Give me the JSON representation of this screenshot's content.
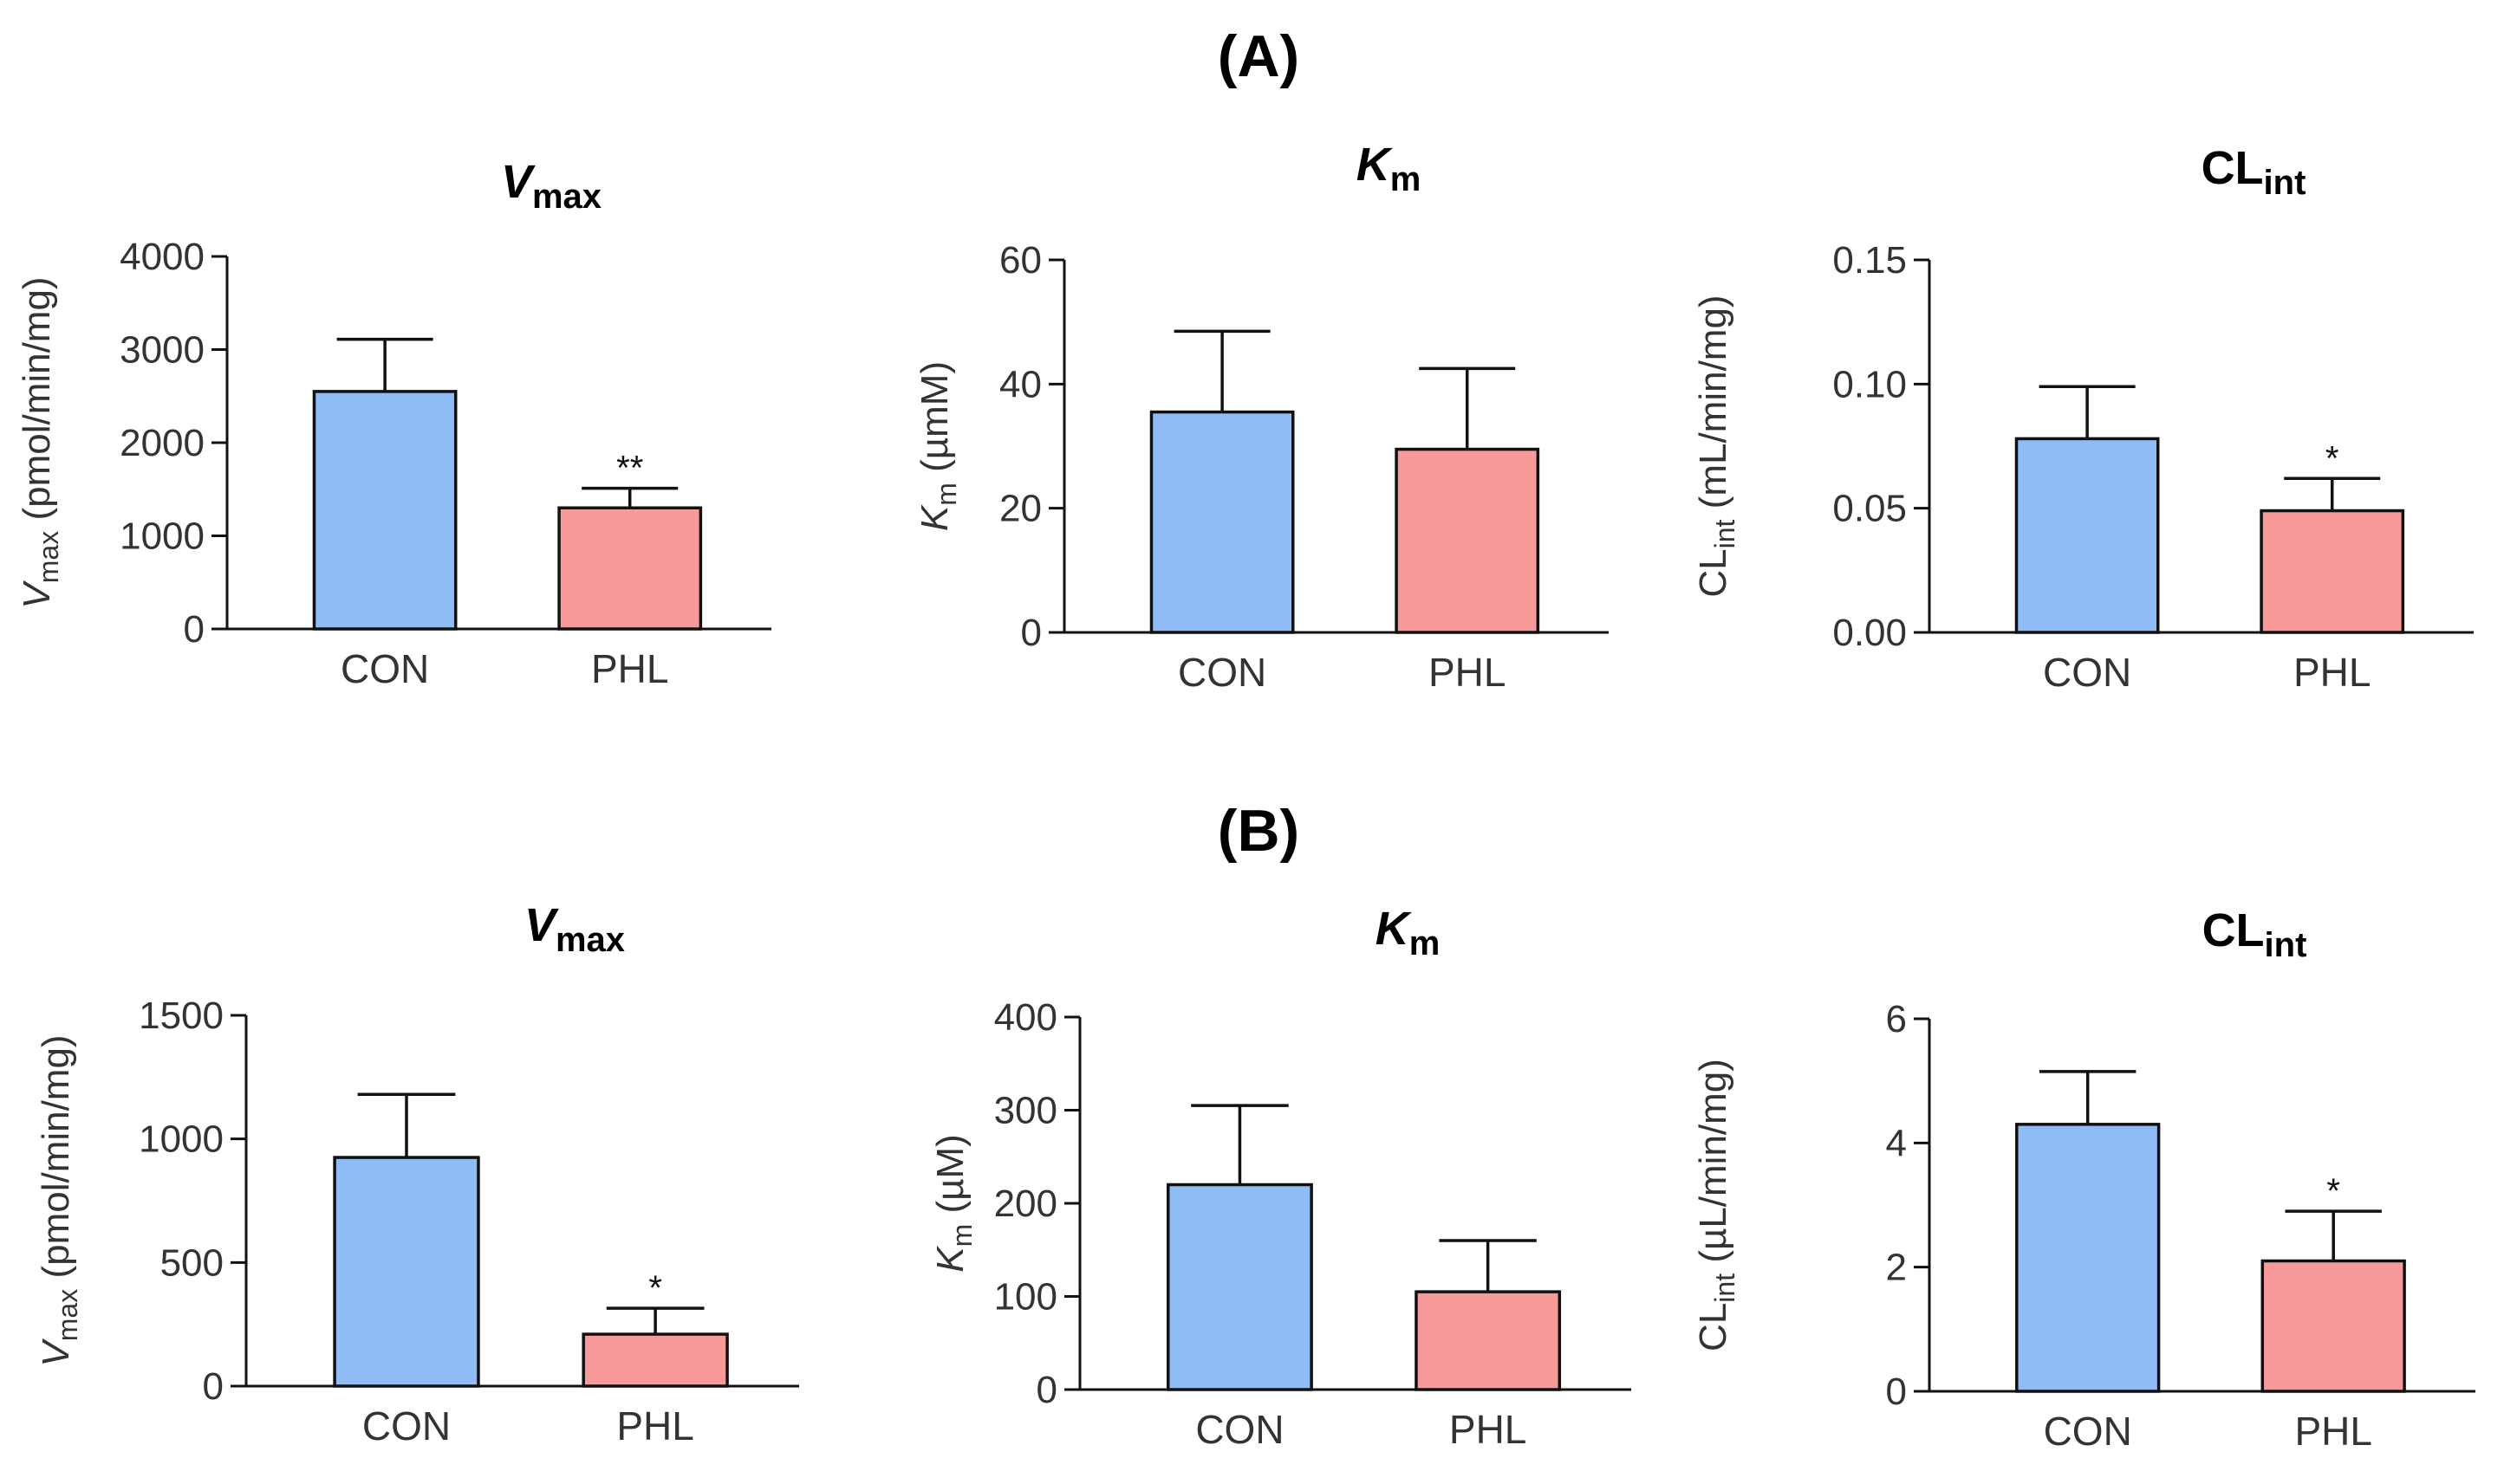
{
  "figure": {
    "panel_labels": [
      "(A)",
      "(B)"
    ]
  },
  "colors": {
    "CON": "#8fbcf5",
    "PHL": "#f99a9a"
  },
  "chart_data": [
    {
      "type": "bar",
      "panel": "A",
      "title_main": "V",
      "title_sub": "max",
      "title_main_italic": true,
      "ylabel_main": "V",
      "ylabel_sub": "max",
      "ylabel_main_italic": true,
      "ylabel_rest": " (pmol/min/mg)",
      "categories": [
        "CON",
        "PHL"
      ],
      "values": [
        2550,
        1300
      ],
      "errors": [
        560,
        210
      ],
      "ylim": [
        0,
        4000
      ],
      "yticks": [
        "0",
        "1000",
        "2000",
        "3000",
        "4000"
      ],
      "tickvals": [
        0,
        1000,
        2000,
        3000,
        4000
      ],
      "annotations": [
        "",
        "**"
      ]
    },
    {
      "type": "bar",
      "panel": "A",
      "title_main": "K",
      "title_sub": "m",
      "title_main_italic": true,
      "ylabel_main": "K",
      "ylabel_sub": "m",
      "ylabel_main_italic": true,
      "ylabel_rest": " (µmM)",
      "categories": [
        "CON",
        "PHL"
      ],
      "values": [
        35.5,
        29.5
      ],
      "errors": [
        13,
        13
      ],
      "ylim": [
        0,
        60
      ],
      "yticks": [
        "0",
        "20",
        "40",
        "60"
      ],
      "tickvals": [
        0,
        20,
        40,
        60
      ],
      "annotations": [
        "",
        ""
      ]
    },
    {
      "type": "bar",
      "panel": "A",
      "title_main": "CL",
      "title_sub": "int",
      "title_main_italic": false,
      "ylabel_main": "CL",
      "ylabel_sub": "int",
      "ylabel_main_italic": false,
      "ylabel_rest": " (mL/min/mg)",
      "categories": [
        "CON",
        "PHL"
      ],
      "values": [
        0.078,
        0.049
      ],
      "errors": [
        0.021,
        0.013
      ],
      "ylim": [
        0,
        0.15
      ],
      "yticks": [
        "0.00",
        "0.05",
        "0.10",
        "0.15"
      ],
      "tickvals": [
        0,
        0.05,
        0.1,
        0.15
      ],
      "annotations": [
        "",
        "*"
      ]
    },
    {
      "type": "bar",
      "panel": "B",
      "title_main": "V",
      "title_sub": "max",
      "title_main_italic": true,
      "ylabel_main": "V",
      "ylabel_sub": "max",
      "ylabel_main_italic": true,
      "ylabel_rest": " (pmol/min/mg)",
      "categories": [
        "CON",
        "PHL"
      ],
      "values": [
        925,
        210
      ],
      "errors": [
        255,
        105
      ],
      "ylim": [
        0,
        1500
      ],
      "yticks": [
        "0",
        "500",
        "1000",
        "1500"
      ],
      "tickvals": [
        0,
        500,
        1000,
        1500
      ],
      "annotations": [
        "",
        "*"
      ]
    },
    {
      "type": "bar",
      "panel": "B",
      "title_main": "K",
      "title_sub": "m",
      "title_main_italic": true,
      "ylabel_main": "K",
      "ylabel_sub": "m",
      "ylabel_main_italic": true,
      "ylabel_rest": " (µM)",
      "categories": [
        "CON",
        "PHL"
      ],
      "values": [
        220,
        105
      ],
      "errors": [
        85,
        55
      ],
      "ylim": [
        0,
        400
      ],
      "yticks": [
        "0",
        "100",
        "200",
        "300",
        "400"
      ],
      "tickvals": [
        0,
        100,
        200,
        300,
        400
      ],
      "annotations": [
        "",
        ""
      ]
    },
    {
      "type": "bar",
      "panel": "B",
      "title_main": "CL",
      "title_sub": "int",
      "title_main_italic": false,
      "ylabel_main": "CL",
      "ylabel_sub": "int",
      "ylabel_main_italic": false,
      "ylabel_rest": " (µL/min/mg)",
      "categories": [
        "CON",
        "PHL"
      ],
      "values": [
        4.3,
        2.1
      ],
      "errors": [
        0.85,
        0.8
      ],
      "ylim": [
        0,
        6
      ],
      "yticks": [
        "0",
        "2",
        "4",
        "6"
      ],
      "tickvals": [
        0,
        2,
        4,
        6
      ],
      "annotations": [
        "",
        "*"
      ]
    }
  ]
}
